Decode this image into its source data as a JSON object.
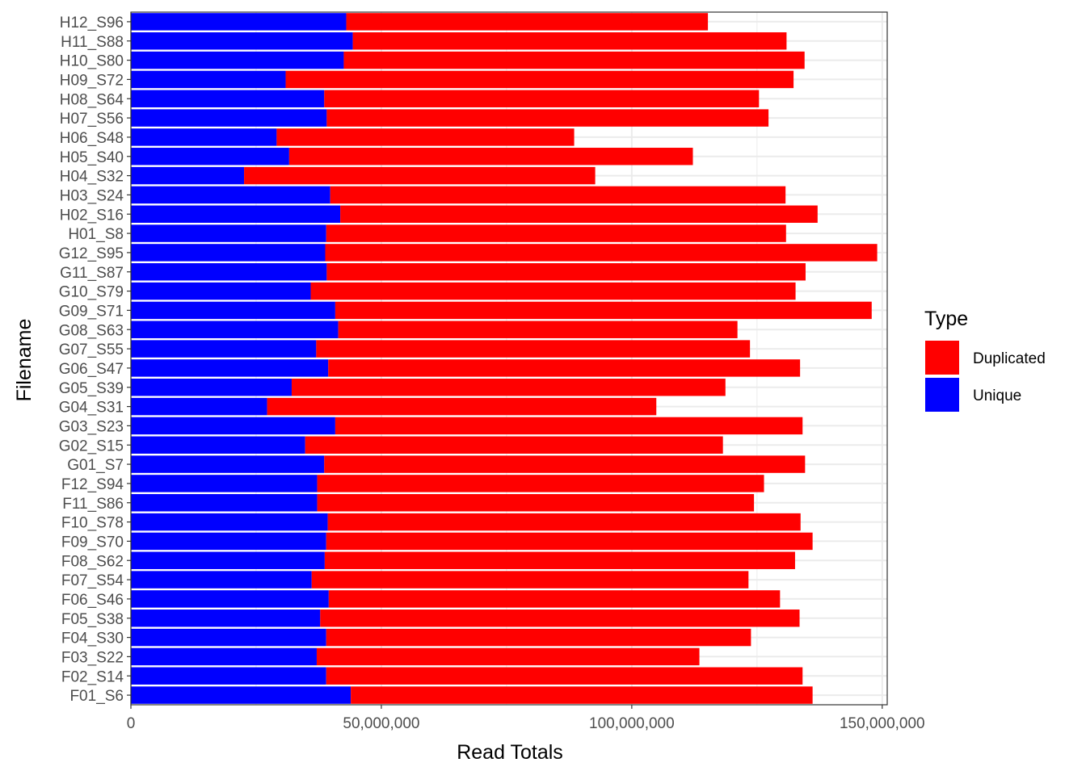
{
  "chart_data": {
    "type": "bar",
    "orientation": "horizontal",
    "stacked": true,
    "xlabel": "Read Totals",
    "ylabel": "Filename",
    "xlim": [
      0,
      151000000
    ],
    "x_ticks": [
      0,
      50000000,
      100000000,
      150000000
    ],
    "x_tick_labels": [
      "0",
      "50,000,000",
      "100,000,000",
      "150,000,000"
    ],
    "grid": true,
    "legend": {
      "title": "Type",
      "placement": "right",
      "entries": [
        {
          "name": "Duplicated",
          "color": "#ff0000"
        },
        {
          "name": "Unique",
          "color": "#0000ff"
        }
      ]
    },
    "categories": [
      "H12_S96",
      "H11_S88",
      "H10_S80",
      "H09_S72",
      "H08_S64",
      "H07_S56",
      "H06_S48",
      "H05_S40",
      "H04_S32",
      "H03_S24",
      "H02_S16",
      "H01_S8",
      "G12_S95",
      "G11_S87",
      "G10_S79",
      "G09_S71",
      "G08_S63",
      "G07_S55",
      "G06_S47",
      "G05_S39",
      "G04_S31",
      "G03_S23",
      "G02_S15",
      "G01_S7",
      "F12_S94",
      "F11_S86",
      "F10_S78",
      "F09_S70",
      "F08_S62",
      "F07_S54",
      "F06_S46",
      "F05_S38",
      "F04_S30",
      "F03_S22",
      "F02_S14",
      "F01_S6"
    ],
    "series": [
      {
        "name": "Unique",
        "color": "#0000ff",
        "values": [
          43000000,
          44300000,
          42500000,
          30900000,
          38600000,
          39100000,
          29100000,
          31600000,
          22600000,
          39800000,
          41800000,
          39000000,
          38800000,
          39100000,
          35900000,
          40800000,
          41400000,
          37000000,
          39400000,
          32100000,
          27200000,
          40800000,
          34800000,
          38600000,
          37200000,
          37200000,
          39300000,
          39000000,
          38700000,
          36100000,
          39500000,
          37800000,
          39000000,
          37100000,
          39000000,
          43900000
        ]
      },
      {
        "name": "Duplicated",
        "color": "#ff0000",
        "values": [
          72200000,
          86600000,
          92000000,
          101400000,
          86800000,
          88200000,
          59400000,
          80600000,
          70100000,
          90900000,
          95300000,
          91800000,
          110200000,
          95600000,
          96800000,
          107100000,
          79700000,
          86600000,
          94200000,
          86600000,
          77700000,
          93300000,
          83400000,
          96000000,
          89200000,
          87200000,
          94400000,
          97100000,
          93900000,
          87200000,
          90100000,
          95700000,
          84800000,
          76400000,
          95100000,
          92200000
        ]
      }
    ]
  }
}
